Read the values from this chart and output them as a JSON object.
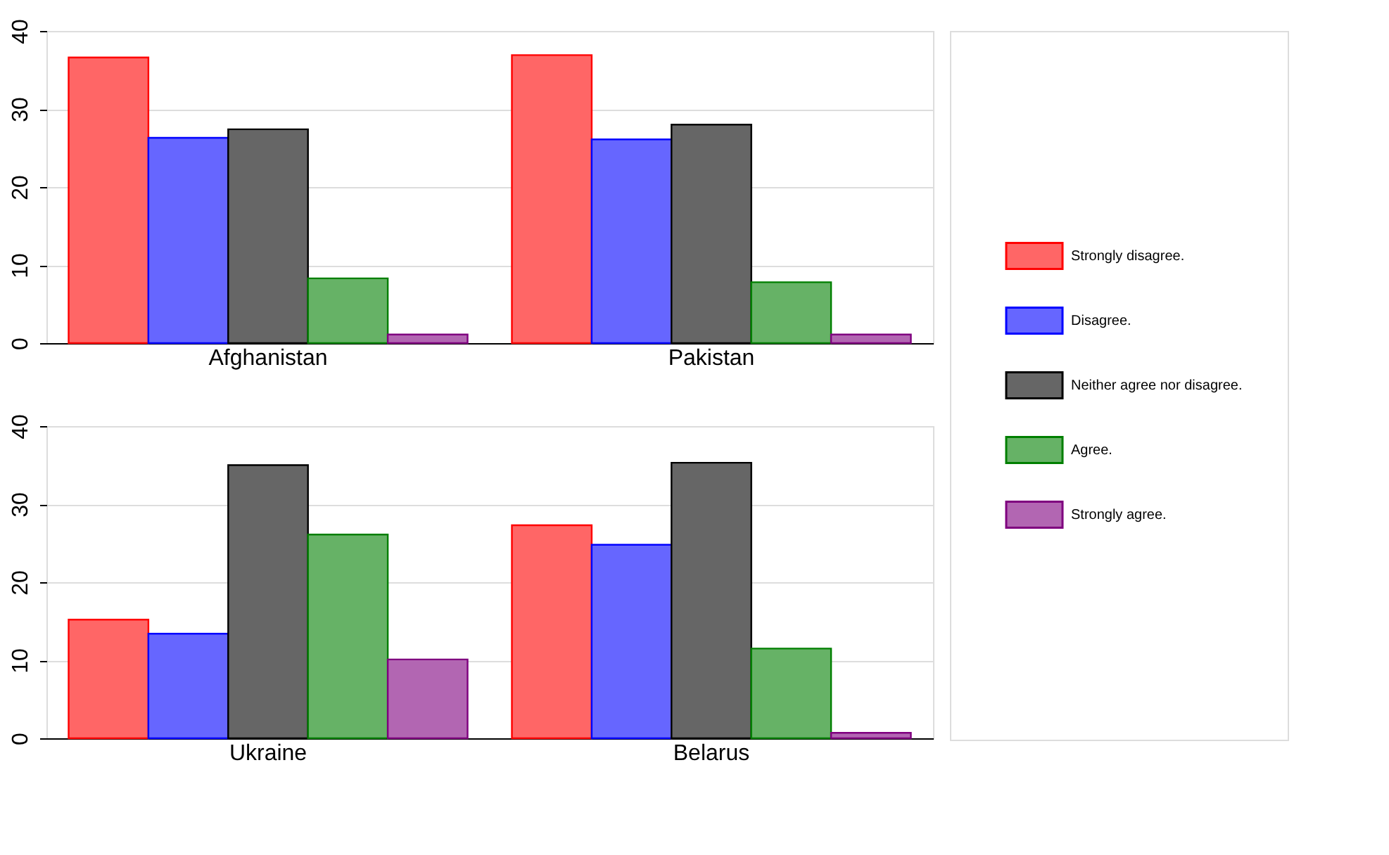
{
  "chart_data": [
    {
      "type": "bar",
      "categories": [
        "Afghanistan",
        "Pakistan"
      ],
      "ylim": [
        0,
        40
      ],
      "yticks": [
        0,
        10,
        20,
        30,
        40
      ],
      "grid": "y",
      "legend": "right",
      "series": [
        {
          "name": "Strongly disagree.",
          "color": "#ff6666",
          "values": [
            36.6,
            36.9
          ]
        },
        {
          "name": "Disagree.",
          "color": "#6666ff",
          "values": [
            26.3,
            26.1
          ]
        },
        {
          "name": "Neither agree nor disagree.",
          "color": "#666666",
          "values": [
            27.4,
            28.0
          ]
        },
        {
          "name": "Agree.",
          "color": "#66b266",
          "values": [
            8.3,
            7.8
          ]
        },
        {
          "name": "Strongly agree.",
          "color": "#b266b2",
          "values": [
            1.1,
            1.1
          ]
        }
      ]
    },
    {
      "type": "bar",
      "categories": [
        "Ukraine",
        "Belarus"
      ],
      "ylim": [
        0,
        40
      ],
      "yticks": [
        0,
        10,
        20,
        30,
        40
      ],
      "grid": "y",
      "series": [
        {
          "color": "#ff6666",
          "values": [
            15.2,
            27.3
          ]
        },
        {
          "color": "#6666ff",
          "values": [
            13.4,
            24.8
          ]
        },
        {
          "color": "#666666",
          "values": [
            35.0,
            35.3
          ]
        },
        {
          "color": "#66b266",
          "values": [
            26.1,
            11.5
          ]
        },
        {
          "color": "#b266b2",
          "values": [
            10.1,
            0.7
          ]
        }
      ]
    }
  ]
}
